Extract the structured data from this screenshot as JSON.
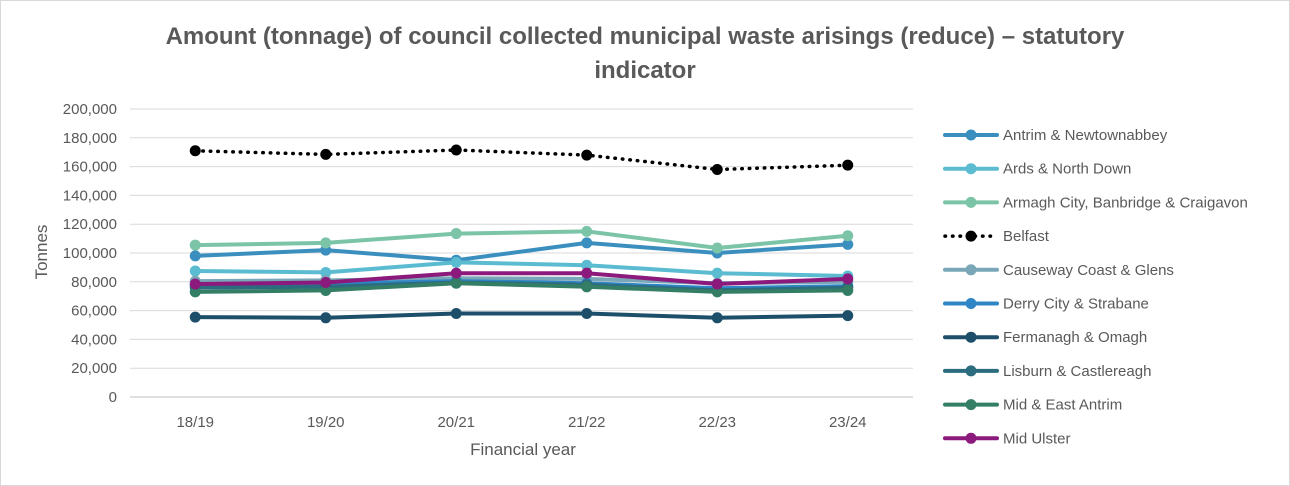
{
  "chart_data": {
    "type": "line",
    "title_lines": [
      "Amount (tonnage) of council collected municipal waste arisings (reduce) – statutory",
      "indicator"
    ],
    "xlabel": "Financial year",
    "ylabel": "Tonnes",
    "ylim": [
      0,
      200000
    ],
    "y_step": 20000,
    "y_tick_labels": [
      "0",
      "20,000",
      "40,000",
      "60,000",
      "80,000",
      "100,000",
      "120,000",
      "140,000",
      "160,000",
      "180,000",
      "200,000"
    ],
    "grid": true,
    "legend_position": "right",
    "categories": [
      "18/19",
      "19/20",
      "20/21",
      "21/22",
      "22/23",
      "23/24"
    ],
    "series": [
      {
        "name": "Antrim & Newtownabbey",
        "color": "#3a8fbf",
        "dash": "solid",
        "values": [
          98000,
          102000,
          95000,
          107000,
          100000,
          106000
        ]
      },
      {
        "name": "Ards & North Down",
        "color": "#5bbcd1",
        "dash": "solid",
        "values": [
          87500,
          86500,
          93500,
          91500,
          86000,
          84000
        ]
      },
      {
        "name": "Armagh City, Banbridge & Craigavon",
        "color": "#7cc4a8",
        "dash": "solid",
        "values": [
          105500,
          107000,
          113500,
          115000,
          103500,
          112000
        ]
      },
      {
        "name": "Belfast",
        "color": "#000000",
        "dash": "dot",
        "values": [
          171000,
          168500,
          171500,
          168000,
          158000,
          161000
        ]
      },
      {
        "name": "Causeway Coast & Glens",
        "color": "#7aa7b7",
        "dash": "solid",
        "values": [
          80500,
          81000,
          82500,
          82000,
          79000,
          80000
        ]
      },
      {
        "name": "Derry City & Strabane",
        "color": "#2f86c6",
        "dash": "solid",
        "values": [
          77500,
          78500,
          80500,
          79000,
          75500,
          77000
        ]
      },
      {
        "name": "Fermanagh & Omagh",
        "color": "#1d4f6b",
        "dash": "solid",
        "values": [
          55500,
          55000,
          58000,
          58000,
          55000,
          56500
        ]
      },
      {
        "name": "Lisburn & Castlereagh",
        "color": "#2b6c7e",
        "dash": "solid",
        "values": [
          76000,
          76500,
          79500,
          78000,
          74000,
          76000
        ]
      },
      {
        "name": "Mid & East Antrim",
        "color": "#347e66",
        "dash": "solid",
        "values": [
          73000,
          74000,
          79000,
          76500,
          73000,
          74000
        ]
      },
      {
        "name": "Mid Ulster",
        "color": "#8b1a7c",
        "dash": "solid",
        "values": [
          78500,
          79500,
          86000,
          86000,
          78500,
          82000
        ]
      }
    ]
  }
}
